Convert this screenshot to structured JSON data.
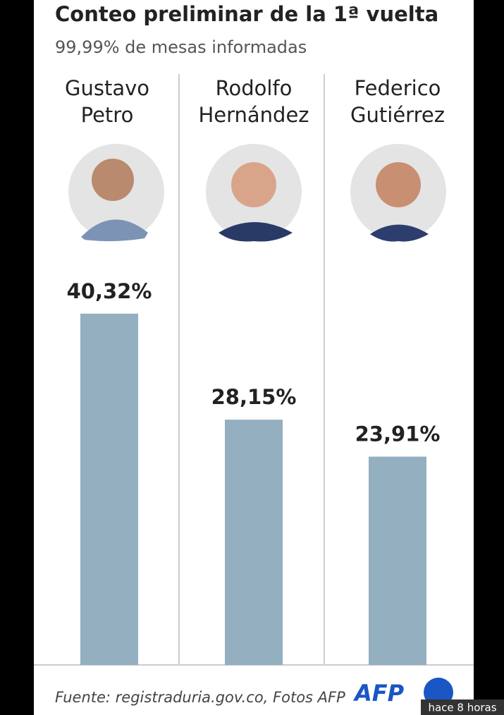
{
  "chart_data": {
    "type": "bar",
    "title": "Conteo preliminar de la 1ª vuelta",
    "subtitle": "99,99% de mesas informadas",
    "categories": [
      [
        "Gustavo",
        "Petro"
      ],
      [
        "Rodolfo",
        "Hernández"
      ],
      [
        "Federico",
        "Gutiérrez"
      ]
    ],
    "values": [
      40.32,
      28.15,
      23.91
    ],
    "value_labels": [
      "40,32%",
      "28,15%",
      "23,91%"
    ],
    "color": "#94afc0",
    "ylim": [
      0,
      45
    ],
    "source": "Fuente: registraduria.gov.co, Fotos AFP",
    "logo": "AFP",
    "timestamp": "hace 8 horas"
  }
}
